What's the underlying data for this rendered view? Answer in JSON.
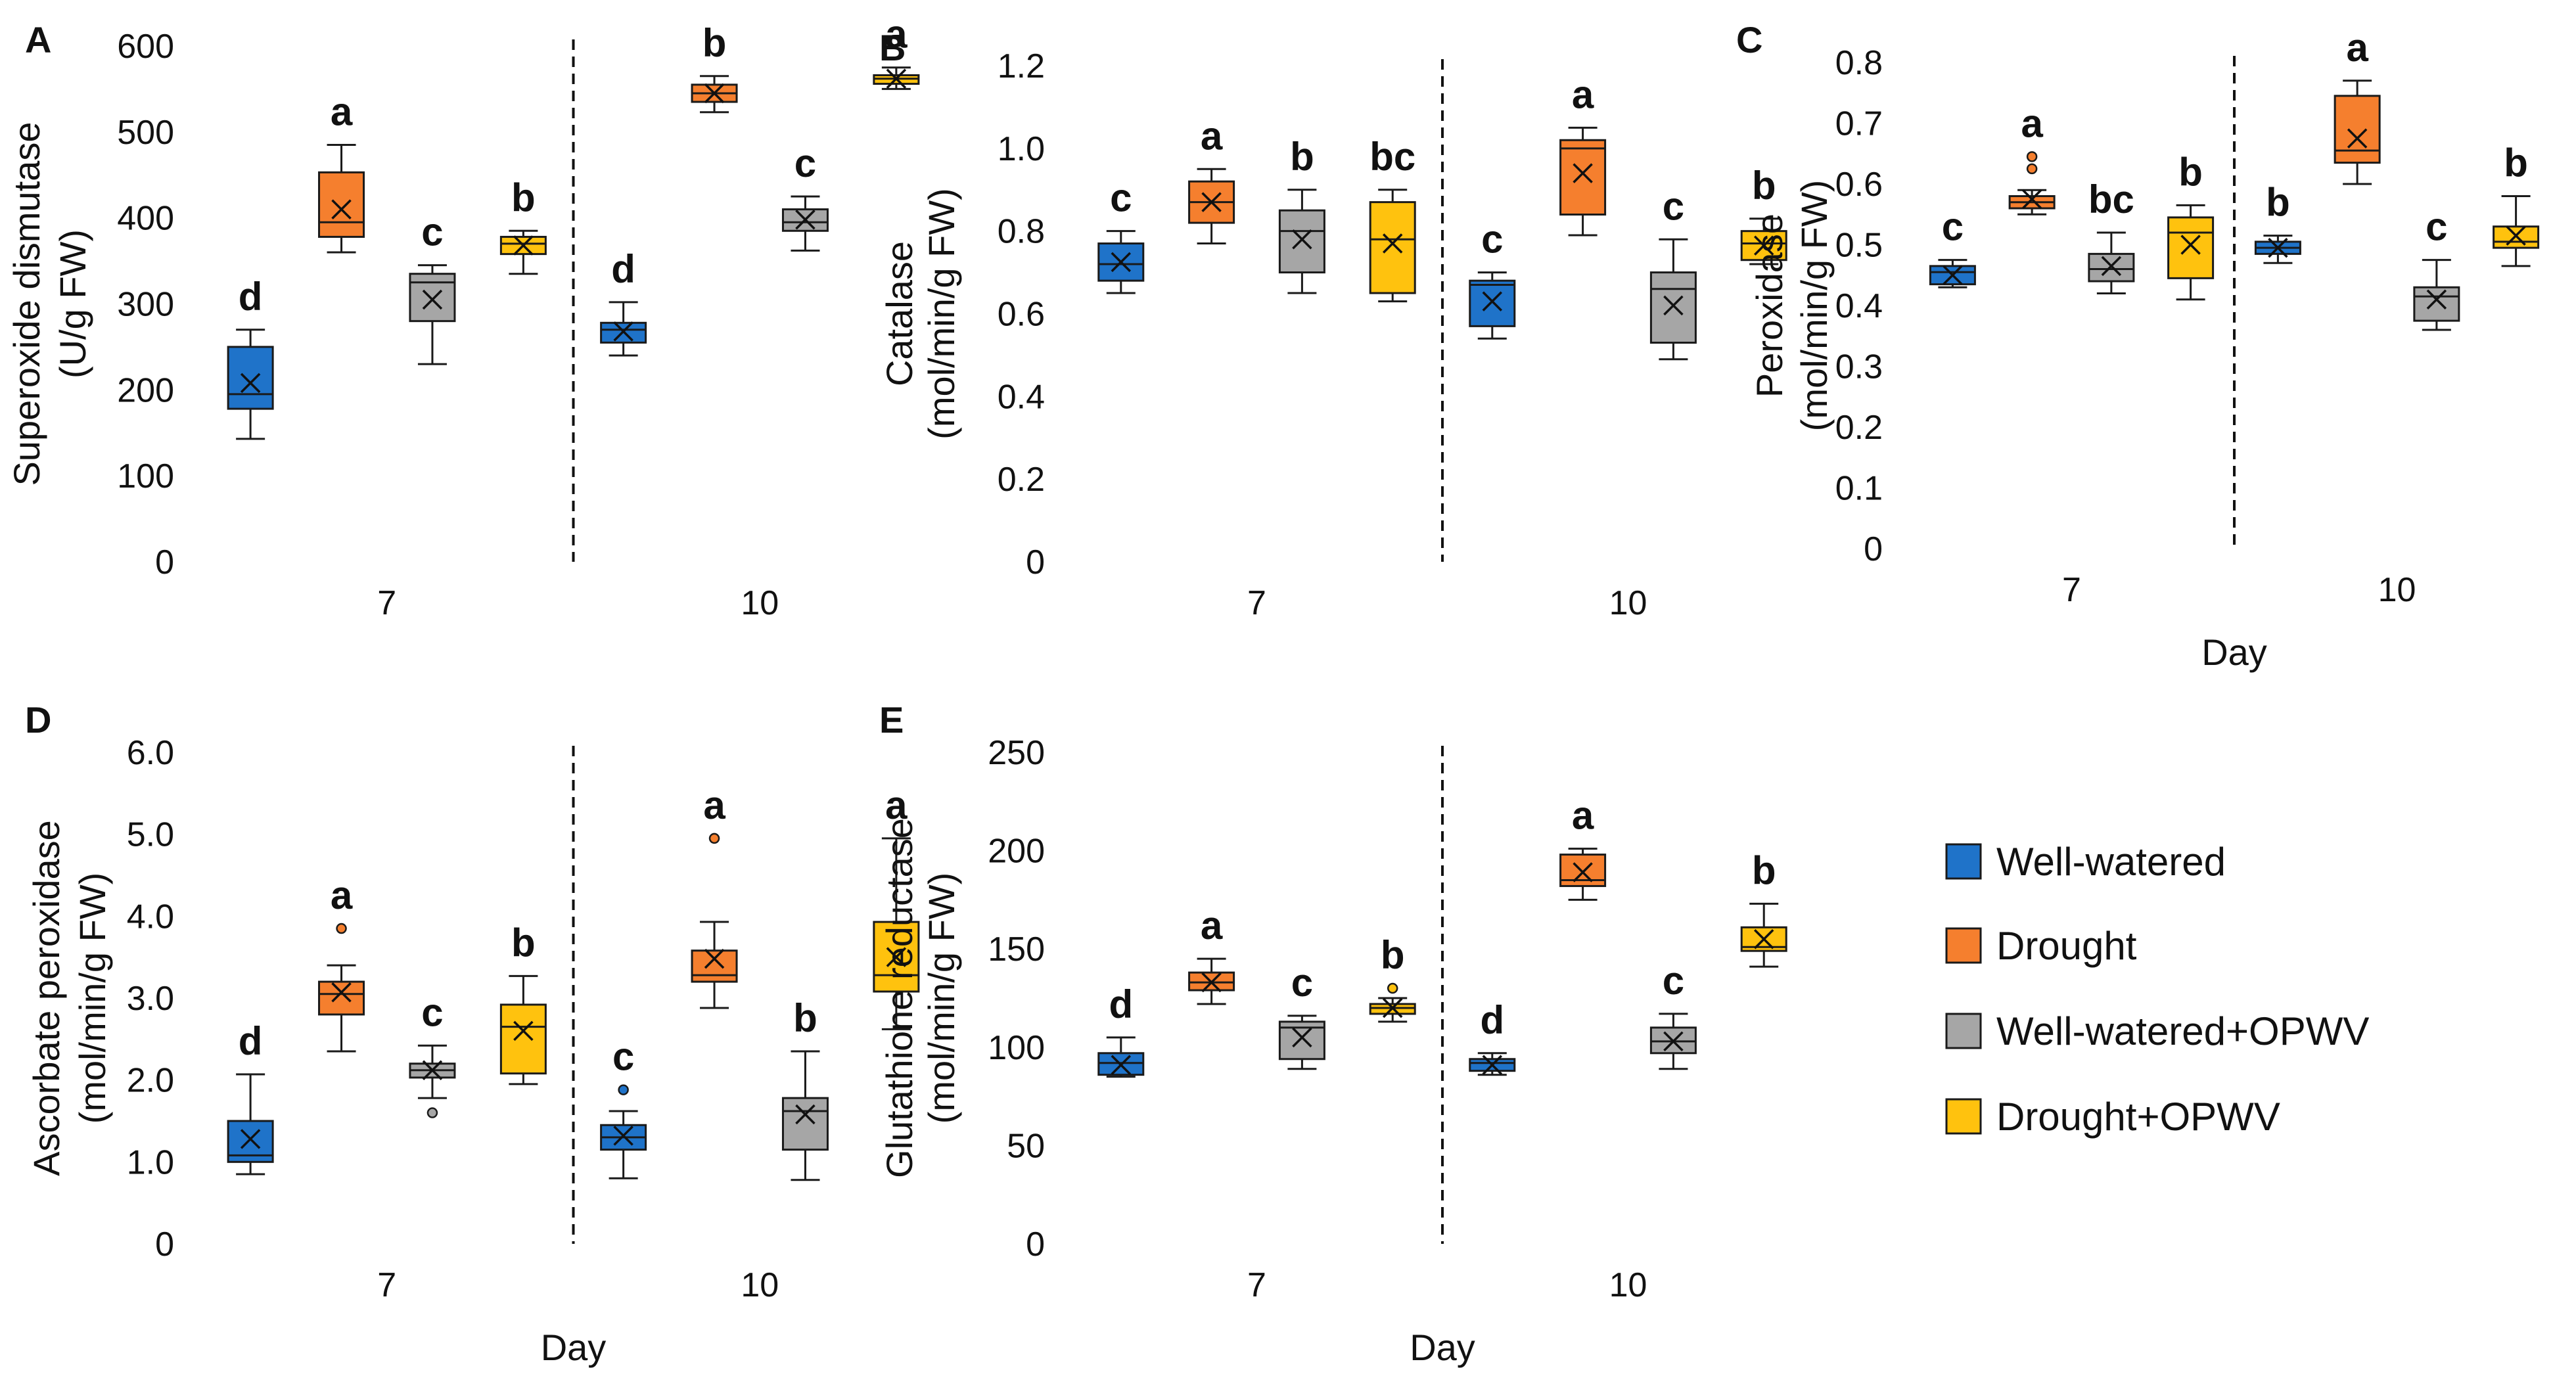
{
  "colors": {
    "Well-watered": "#1f73c9",
    "Drought": "#f57f2e",
    "Well-watered+OPWV": "#a6a6a6",
    "Drought+OPWV": "#ffc20e",
    "outline": "#1a1a1a"
  },
  "legend": [
    "Well-watered",
    "Drought",
    "Well-watered+OPWV",
    "Drought+OPWV"
  ],
  "chart_data": [
    {
      "panel": "A",
      "type": "box",
      "ylabel_line1": "Superoxide dismutase",
      "ylabel_line2": "(U/g FW)",
      "xlabel": "",
      "categories": [
        "7",
        "10"
      ],
      "ylim": [
        0,
        600
      ],
      "yticks": [
        "0",
        "100",
        "200",
        "300",
        "400",
        "500",
        "600"
      ],
      "ytick_values": [
        0,
        100,
        200,
        300,
        400,
        500,
        600
      ],
      "groups": [
        [
          {
            "series": "Well-watered",
            "min": 143,
            "q1": 178,
            "median": 195,
            "q3": 250,
            "max": 270,
            "mean": 208,
            "letter": "d",
            "outliers": []
          },
          {
            "series": "Drought",
            "min": 360,
            "q1": 378,
            "median": 395,
            "q3": 453,
            "max": 485,
            "mean": 410,
            "letter": "a",
            "outliers": []
          },
          {
            "series": "Well-watered+OPWV",
            "min": 230,
            "q1": 280,
            "median": 325,
            "q3": 335,
            "max": 345,
            "mean": 305,
            "letter": "c",
            "outliers": []
          },
          {
            "series": "Drought+OPWV",
            "min": 335,
            "q1": 358,
            "median": 370,
            "q3": 378,
            "max": 385,
            "mean": 368,
            "letter": "b",
            "outliers": []
          }
        ],
        [
          {
            "series": "Well-watered",
            "min": 240,
            "q1": 255,
            "median": 270,
            "q3": 278,
            "max": 302,
            "mean": 268,
            "letter": "d",
            "outliers": []
          },
          {
            "series": "Drought",
            "min": 523,
            "q1": 535,
            "median": 545,
            "q3": 555,
            "max": 565,
            "mean": 545,
            "letter": "b",
            "outliers": []
          },
          {
            "series": "Well-watered+OPWV",
            "min": 362,
            "q1": 385,
            "median": 395,
            "q3": 410,
            "max": 425,
            "mean": 398,
            "letter": "c",
            "outliers": []
          },
          {
            "series": "Drought+OPWV",
            "min": 550,
            "q1": 556,
            "median": 562,
            "q3": 566,
            "max": 575,
            "mean": 562,
            "letter": "a",
            "outliers": []
          }
        ]
      ]
    },
    {
      "panel": "B",
      "type": "box",
      "ylabel_line1": "Catalase",
      "ylabel_line2": "(mol/min/g FW)",
      "xlabel": "",
      "categories": [
        "7",
        "10"
      ],
      "ylim": [
        0,
        1.2
      ],
      "yticks": [
        "0",
        "0.2",
        "0.4",
        "0.6",
        "0.8",
        "1.0",
        "1.2"
      ],
      "ytick_values": [
        0,
        0.2,
        0.4,
        0.6,
        0.8,
        1.0,
        1.2
      ],
      "groups": [
        [
          {
            "series": "Well-watered",
            "min": 0.65,
            "q1": 0.68,
            "median": 0.72,
            "q3": 0.77,
            "max": 0.8,
            "mean": 0.725,
            "letter": "c",
            "outliers": []
          },
          {
            "series": "Drought",
            "min": 0.77,
            "q1": 0.82,
            "median": 0.87,
            "q3": 0.92,
            "max": 0.95,
            "mean": 0.87,
            "letter": "a",
            "outliers": []
          },
          {
            "series": "Well-watered+OPWV",
            "min": 0.65,
            "q1": 0.7,
            "median": 0.8,
            "q3": 0.85,
            "max": 0.9,
            "mean": 0.78,
            "letter": "b",
            "outliers": []
          },
          {
            "series": "Drought+OPWV",
            "min": 0.63,
            "q1": 0.65,
            "median": 0.78,
            "q3": 0.87,
            "max": 0.9,
            "mean": 0.77,
            "letter": "bc",
            "outliers": []
          }
        ],
        [
          {
            "series": "Well-watered",
            "min": 0.54,
            "q1": 0.57,
            "median": 0.67,
            "q3": 0.68,
            "max": 0.7,
            "mean": 0.63,
            "letter": "c",
            "outliers": []
          },
          {
            "series": "Drought",
            "min": 0.79,
            "q1": 0.84,
            "median": 1.0,
            "q3": 1.02,
            "max": 1.05,
            "mean": 0.94,
            "letter": "a",
            "outliers": []
          },
          {
            "series": "Well-watered+OPWV",
            "min": 0.49,
            "q1": 0.53,
            "median": 0.66,
            "q3": 0.7,
            "max": 0.78,
            "mean": 0.62,
            "letter": "c",
            "outliers": []
          },
          {
            "series": "Drought+OPWV",
            "min": 0.72,
            "q1": 0.73,
            "median": 0.77,
            "q3": 0.8,
            "max": 0.83,
            "mean": 0.765,
            "letter": "b",
            "outliers": []
          }
        ]
      ]
    },
    {
      "panel": "C",
      "type": "box",
      "ylabel_line1": "Peroxidase",
      "ylabel_line2": "(mol/min/g FW)",
      "xlabel": "Day",
      "categories": [
        "7",
        "10"
      ],
      "ylim": [
        0,
        0.8
      ],
      "yticks": [
        "0",
        "0.1",
        "0.2",
        "0.3",
        "0.4",
        "0.5",
        "0.6",
        "0.7",
        "0.8"
      ],
      "ytick_values": [
        0,
        0.1,
        0.2,
        0.3,
        0.4,
        0.5,
        0.6,
        0.7,
        0.8
      ],
      "groups": [
        [
          {
            "series": "Well-watered",
            "min": 0.43,
            "q1": 0.435,
            "median": 0.455,
            "q3": 0.465,
            "max": 0.475,
            "mean": 0.45,
            "letter": "c",
            "outliers": []
          },
          {
            "series": "Drought",
            "min": 0.55,
            "q1": 0.56,
            "median": 0.57,
            "q3": 0.58,
            "max": 0.59,
            "mean": 0.575,
            "letter": "a",
            "outliers": [
              0.625,
              0.645
            ]
          },
          {
            "series": "Well-watered+OPWV",
            "min": 0.42,
            "q1": 0.44,
            "median": 0.46,
            "q3": 0.485,
            "max": 0.52,
            "mean": 0.465,
            "letter": "bc",
            "outliers": []
          },
          {
            "series": "Drought+OPWV",
            "min": 0.41,
            "q1": 0.445,
            "median": 0.52,
            "q3": 0.545,
            "max": 0.565,
            "mean": 0.5,
            "letter": "b",
            "outliers": []
          }
        ],
        [
          {
            "series": "Well-watered",
            "min": 0.47,
            "q1": 0.485,
            "median": 0.495,
            "q3": 0.505,
            "max": 0.515,
            "mean": 0.495,
            "letter": "b",
            "outliers": []
          },
          {
            "series": "Drought",
            "min": 0.6,
            "q1": 0.635,
            "median": 0.655,
            "q3": 0.745,
            "max": 0.77,
            "mean": 0.675,
            "letter": "a",
            "outliers": []
          },
          {
            "series": "Well-watered+OPWV",
            "min": 0.36,
            "q1": 0.375,
            "median": 0.415,
            "q3": 0.43,
            "max": 0.475,
            "mean": 0.41,
            "letter": "c",
            "outliers": []
          },
          {
            "series": "Drought+OPWV",
            "min": 0.465,
            "q1": 0.495,
            "median": 0.505,
            "q3": 0.53,
            "max": 0.58,
            "mean": 0.515,
            "letter": "b",
            "outliers": []
          }
        ]
      ]
    },
    {
      "panel": "D",
      "type": "box",
      "ylabel_line1": "Ascorbate peroxidase",
      "ylabel_line2": "(mol/min/g FW)",
      "xlabel": "Day",
      "categories": [
        "7",
        "10"
      ],
      "ylim": [
        0,
        6.0
      ],
      "yticks": [
        "0",
        "1.0",
        "2.0",
        "3.0",
        "4.0",
        "5.0",
        "6.0"
      ],
      "ytick_values": [
        0,
        1,
        2,
        3,
        4,
        5,
        6
      ],
      "groups": [
        [
          {
            "series": "Well-watered",
            "min": 0.85,
            "q1": 1.0,
            "median": 1.08,
            "q3": 1.5,
            "max": 2.07,
            "mean": 1.28,
            "letter": "d",
            "outliers": []
          },
          {
            "series": "Drought",
            "min": 2.35,
            "q1": 2.8,
            "median": 3.05,
            "q3": 3.2,
            "max": 3.4,
            "mean": 3.07,
            "letter": "a",
            "outliers": [
              3.85
            ]
          },
          {
            "series": "Well-watered+OPWV",
            "min": 1.78,
            "q1": 2.03,
            "median": 2.12,
            "q3": 2.2,
            "max": 2.42,
            "mean": 2.12,
            "letter": "c",
            "outliers": [
              1.6
            ]
          },
          {
            "series": "Drought+OPWV",
            "min": 1.95,
            "q1": 2.08,
            "median": 2.65,
            "q3": 2.92,
            "max": 3.27,
            "mean": 2.6,
            "letter": "b",
            "outliers": []
          }
        ],
        [
          {
            "series": "Well-watered",
            "min": 0.8,
            "q1": 1.15,
            "median": 1.3,
            "q3": 1.45,
            "max": 1.62,
            "mean": 1.32,
            "letter": "c",
            "outliers": [
              1.88
            ]
          },
          {
            "series": "Drought",
            "min": 2.88,
            "q1": 3.2,
            "median": 3.28,
            "q3": 3.58,
            "max": 3.93,
            "mean": 3.48,
            "letter": "a",
            "outliers": [
              4.95
            ]
          },
          {
            "series": "Well-watered+OPWV",
            "min": 0.78,
            "q1": 1.15,
            "median": 1.62,
            "q3": 1.78,
            "max": 2.35,
            "mean": 1.58,
            "letter": "b",
            "outliers": []
          },
          {
            "series": "Drought+OPWV",
            "min": 2.62,
            "q1": 3.08,
            "median": 3.28,
            "q3": 3.93,
            "max": 4.95,
            "mean": 3.5,
            "letter": "a",
            "outliers": []
          }
        ]
      ]
    },
    {
      "panel": "E",
      "type": "box",
      "ylabel_line1": "Glutathione reductase",
      "ylabel_line2": "(mol/min/g FW)",
      "xlabel": "Day",
      "categories": [
        "7",
        "10"
      ],
      "ylim": [
        0,
        250
      ],
      "yticks": [
        "0",
        "50",
        "100",
        "150",
        "200",
        "250"
      ],
      "ytick_values": [
        0,
        50,
        100,
        150,
        200,
        250
      ],
      "groups": [
        [
          {
            "series": "Well-watered",
            "min": 85,
            "q1": 86,
            "median": 92,
            "q3": 97,
            "max": 105,
            "mean": 91,
            "letter": "d",
            "outliers": []
          },
          {
            "series": "Drought",
            "min": 122,
            "q1": 129,
            "median": 133,
            "q3": 138,
            "max": 145,
            "mean": 133,
            "letter": "a",
            "outliers": []
          },
          {
            "series": "Well-watered+OPWV",
            "min": 89,
            "q1": 94,
            "median": 110,
            "q3": 113,
            "max": 116,
            "mean": 105,
            "letter": "c",
            "outliers": []
          },
          {
            "series": "Drought+OPWV",
            "min": 113,
            "q1": 117,
            "median": 120,
            "q3": 122,
            "max": 125,
            "mean": 120,
            "letter": "b",
            "outliers": [
              130
            ]
          }
        ],
        [
          {
            "series": "Well-watered",
            "min": 86,
            "q1": 88,
            "median": 92,
            "q3": 94,
            "max": 97,
            "mean": 91,
            "letter": "d",
            "outliers": []
          },
          {
            "series": "Drought",
            "min": 175,
            "q1": 182,
            "median": 185,
            "q3": 198,
            "max": 201,
            "mean": 189,
            "letter": "a",
            "outliers": []
          },
          {
            "series": "Well-watered+OPWV",
            "min": 89,
            "q1": 97,
            "median": 103,
            "q3": 110,
            "max": 117,
            "mean": 103,
            "letter": "c",
            "outliers": []
          },
          {
            "series": "Drought+OPWV",
            "min": 141,
            "q1": 149,
            "median": 151,
            "q3": 161,
            "max": 173,
            "mean": 155,
            "letter": "b",
            "outliers": []
          }
        ]
      ]
    }
  ]
}
